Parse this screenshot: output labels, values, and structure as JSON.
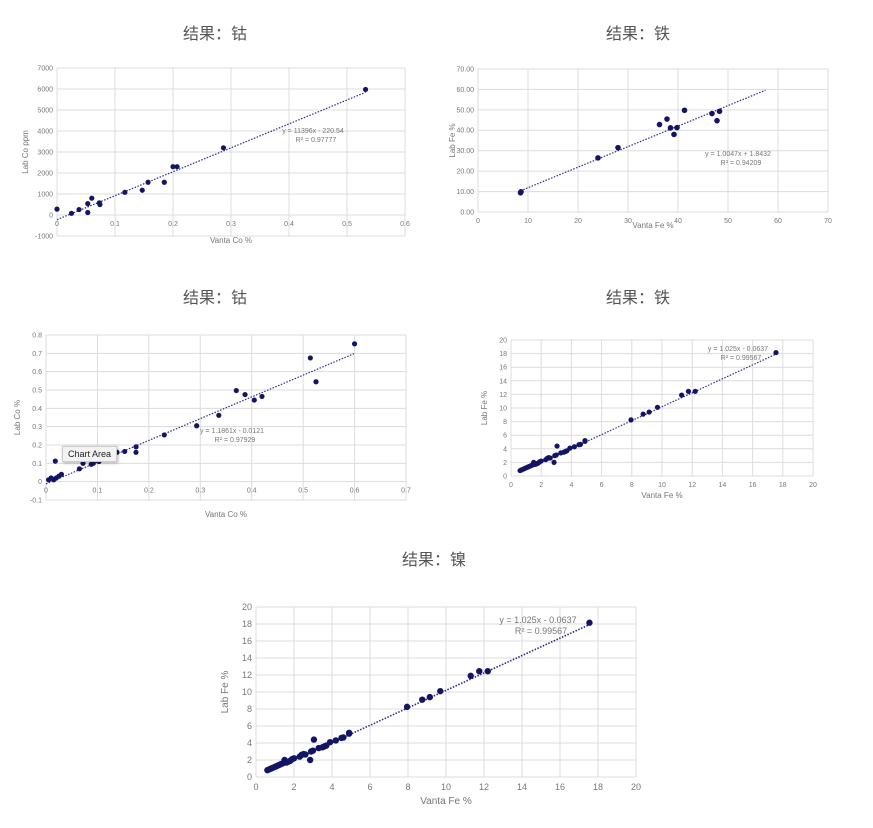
{
  "colors": {
    "marker": "#141464",
    "trendline": "#2a2a8a",
    "grid": "#dcdcdc",
    "text": "#777777"
  },
  "tooltip": "Chart Area",
  "chart_data": [
    {
      "type": "scatter",
      "title": "结果：钴",
      "xlabel": "Vanta Co %",
      "ylabel": "Lab Co ppm",
      "xlim": [
        0,
        0.6
      ],
      "ylim": [
        -1000,
        7000
      ],
      "xticks": [
        "0",
        "0.1",
        "0.2",
        "0.3",
        "0.4",
        "0.5",
        "0.6"
      ],
      "yticks": [
        "-1000",
        "0",
        "1000",
        "2000",
        "3000",
        "4000",
        "5000",
        "6000",
        "7000"
      ],
      "grid": true,
      "points": [
        [
          0,
          280
        ],
        [
          0.025,
          80
        ],
        [
          0.038,
          260
        ],
        [
          0.053,
          540
        ],
        [
          0.053,
          120
        ],
        [
          0.06,
          800
        ],
        [
          0.073,
          580
        ],
        [
          0.074,
          500
        ],
        [
          0.117,
          1080
        ],
        [
          0.147,
          1180
        ],
        [
          0.157,
          1560
        ],
        [
          0.185,
          1560
        ],
        [
          0.2,
          2300
        ],
        [
          0.207,
          2300
        ],
        [
          0.287,
          3200
        ],
        [
          0.532,
          5980
        ]
      ],
      "trendline": {
        "type": "linear",
        "slope": 11396,
        "intercept": -220.54,
        "x_range": [
          0,
          0.532
        ],
        "equation": "y = 11396x - 220.54",
        "r2": "R² = 0.97777"
      }
    },
    {
      "type": "scatter",
      "title": "结果：铁",
      "xlabel": "Vanta Fe %",
      "ylabel": "Lab Fe %",
      "xlim": [
        0,
        70
      ],
      "ylim": [
        0,
        70
      ],
      "xticks": [
        "0",
        "10",
        "20",
        "30",
        "40",
        "50",
        "60",
        "70"
      ],
      "yticks": [
        "0.00",
        "10.00",
        "20.00",
        "30.00",
        "40.00",
        "50.00",
        "60.00",
        "70.00"
      ],
      "grid": true,
      "points": [
        [
          8.5,
          9.4
        ],
        [
          8.6,
          9.9
        ],
        [
          24,
          26.5
        ],
        [
          28,
          31.5
        ],
        [
          36.3,
          42.8
        ],
        [
          37.8,
          45.5
        ],
        [
          38.5,
          41.2
        ],
        [
          39.2,
          38
        ],
        [
          39.8,
          41.3
        ],
        [
          41.3,
          49.8
        ],
        [
          46.8,
          48.2
        ],
        [
          47.8,
          44.7
        ],
        [
          48.3,
          49.3
        ]
      ],
      "trendline": {
        "type": "linear",
        "slope": 1.0047,
        "intercept": 1.8432,
        "x_range": [
          8.5,
          57.5
        ],
        "equation": "y = 1.0047x + 1.8432",
        "r2": "R² = 0.94209"
      }
    },
    {
      "type": "scatter",
      "title": "结果：钴",
      "xlabel": "Vanta Co %",
      "ylabel": "Lab Co %",
      "xlim": [
        0,
        0.7
      ],
      "ylim": [
        -0.1,
        0.8
      ],
      "xticks": [
        "0",
        "0.1",
        "0.2",
        "0.3",
        "0.4",
        "0.5",
        "0.6",
        "0.7"
      ],
      "yticks": [
        "-0.1",
        "0",
        "0.1",
        "0.2",
        "0.3",
        "0.4",
        "0.5",
        "0.6",
        "0.7",
        "0.8"
      ],
      "grid": true,
      "points": [
        [
          0.005,
          0.01
        ],
        [
          0.01,
          0.02
        ],
        [
          0.015,
          0.01
        ],
        [
          0.018,
          0.112
        ],
        [
          0.02,
          0.02
        ],
        [
          0.025,
          0.03
        ],
        [
          0.03,
          0.04
        ],
        [
          0.065,
          0.07
        ],
        [
          0.072,
          0.1
        ],
        [
          0.088,
          0.095
        ],
        [
          0.092,
          0.1
        ],
        [
          0.103,
          0.11
        ],
        [
          0.105,
          0.12
        ],
        [
          0.123,
          0.135
        ],
        [
          0.132,
          0.16
        ],
        [
          0.138,
          0.16
        ],
        [
          0.153,
          0.165
        ],
        [
          0.175,
          0.19
        ],
        [
          0.175,
          0.16
        ],
        [
          0.23,
          0.255
        ],
        [
          0.293,
          0.305
        ],
        [
          0.336,
          0.362
        ],
        [
          0.37,
          0.497
        ],
        [
          0.387,
          0.475
        ],
        [
          0.405,
          0.445
        ],
        [
          0.42,
          0.465
        ],
        [
          0.514,
          0.675
        ],
        [
          0.525,
          0.545
        ],
        [
          0.6,
          0.752
        ]
      ],
      "trendline": {
        "type": "linear",
        "slope": 1.1861,
        "intercept": -0.0121,
        "x_range": [
          0,
          0.6
        ],
        "equation": "y = 1.1861x - 0.0121",
        "r2": "R² = 0.97929"
      }
    },
    {
      "type": "scatter",
      "title": "结果：铁",
      "xlabel": "Vanta Fe %",
      "ylabel": "Lab Fe %",
      "xlim": [
        0,
        20
      ],
      "ylim": [
        0,
        20
      ],
      "xticks": [
        "0",
        "2",
        "4",
        "6",
        "8",
        "10",
        "12",
        "14",
        "16",
        "18",
        "20"
      ],
      "yticks": [
        "0",
        "2",
        "4",
        "6",
        "8",
        "10",
        "12",
        "14",
        "16",
        "18",
        "20"
      ],
      "grid": true,
      "points": [
        [
          0.6,
          0.8
        ],
        [
          0.7,
          0.9
        ],
        [
          0.8,
          1.0
        ],
        [
          0.9,
          1.1
        ],
        [
          1.0,
          1.2
        ],
        [
          1.1,
          1.3
        ],
        [
          1.2,
          1.4
        ],
        [
          1.3,
          1.5
        ],
        [
          1.4,
          1.6
        ],
        [
          1.5,
          2.0
        ],
        [
          1.6,
          1.7
        ],
        [
          1.7,
          1.8
        ],
        [
          1.8,
          1.9
        ],
        [
          1.9,
          2.1
        ],
        [
          2.0,
          2.2
        ],
        [
          2.3,
          2.4
        ],
        [
          2.4,
          2.6
        ],
        [
          2.5,
          2.7
        ],
        [
          2.6,
          2.65
        ],
        [
          2.85,
          2.0
        ],
        [
          2.9,
          3.0
        ],
        [
          3.0,
          3.1
        ],
        [
          3.05,
          4.4
        ],
        [
          3.3,
          3.4
        ],
        [
          3.5,
          3.5
        ],
        [
          3.6,
          3.6
        ],
        [
          3.7,
          3.7
        ],
        [
          3.9,
          4.1
        ],
        [
          4.2,
          4.3
        ],
        [
          4.5,
          4.6
        ],
        [
          4.6,
          4.65
        ],
        [
          4.9,
          5.1
        ],
        [
          4.9,
          5.2
        ],
        [
          7.95,
          8.25
        ],
        [
          8.75,
          9.1
        ],
        [
          9.15,
          9.4
        ],
        [
          9.7,
          10.1
        ],
        [
          11.3,
          11.9
        ],
        [
          11.75,
          12.45
        ],
        [
          12.2,
          12.45
        ],
        [
          17.55,
          18.15
        ]
      ],
      "trendline": {
        "type": "linear",
        "slope": 1.025,
        "intercept": -0.0637,
        "x_range": [
          0.6,
          17.55
        ],
        "equation": "y = 1.025x - 0.0637",
        "r2": "R² = 0.99567"
      }
    },
    {
      "type": "scatter",
      "title": "结果：镍",
      "xlabel": "Vanta Fe %",
      "ylabel": "Lab Fe %",
      "xlim": [
        0,
        20
      ],
      "ylim": [
        0,
        20
      ],
      "xticks": [
        "0",
        "2",
        "4",
        "6",
        "8",
        "10",
        "12",
        "14",
        "16",
        "18",
        "20"
      ],
      "yticks": [
        "0",
        "2",
        "4",
        "6",
        "8",
        "10",
        "12",
        "14",
        "16",
        "18",
        "20"
      ],
      "grid": true,
      "points": [
        [
          0.6,
          0.8
        ],
        [
          0.7,
          0.9
        ],
        [
          0.8,
          1.0
        ],
        [
          0.9,
          1.1
        ],
        [
          1.0,
          1.2
        ],
        [
          1.1,
          1.3
        ],
        [
          1.2,
          1.4
        ],
        [
          1.3,
          1.5
        ],
        [
          1.4,
          1.6
        ],
        [
          1.5,
          2.0
        ],
        [
          1.6,
          1.7
        ],
        [
          1.7,
          1.8
        ],
        [
          1.8,
          1.9
        ],
        [
          1.9,
          2.1
        ],
        [
          2.0,
          2.2
        ],
        [
          2.3,
          2.4
        ],
        [
          2.4,
          2.6
        ],
        [
          2.5,
          2.7
        ],
        [
          2.6,
          2.65
        ],
        [
          2.85,
          2.0
        ],
        [
          2.9,
          3.0
        ],
        [
          3.0,
          3.1
        ],
        [
          3.05,
          4.4
        ],
        [
          3.3,
          3.4
        ],
        [
          3.5,
          3.5
        ],
        [
          3.6,
          3.6
        ],
        [
          3.7,
          3.7
        ],
        [
          3.9,
          4.1
        ],
        [
          4.2,
          4.3
        ],
        [
          4.5,
          4.6
        ],
        [
          4.6,
          4.65
        ],
        [
          4.9,
          5.1
        ],
        [
          4.9,
          5.2
        ],
        [
          7.95,
          8.25
        ],
        [
          8.75,
          9.1
        ],
        [
          9.15,
          9.4
        ],
        [
          9.7,
          10.1
        ],
        [
          11.3,
          11.9
        ],
        [
          11.75,
          12.45
        ],
        [
          12.2,
          12.45
        ],
        [
          17.55,
          18.15
        ]
      ],
      "trendline": {
        "type": "linear",
        "slope": 1.025,
        "intercept": -0.0637,
        "x_range": [
          0.6,
          17.55
        ],
        "equation": "y = 1.025x - 0.0637",
        "r2": "R² = 0.99567"
      }
    }
  ]
}
